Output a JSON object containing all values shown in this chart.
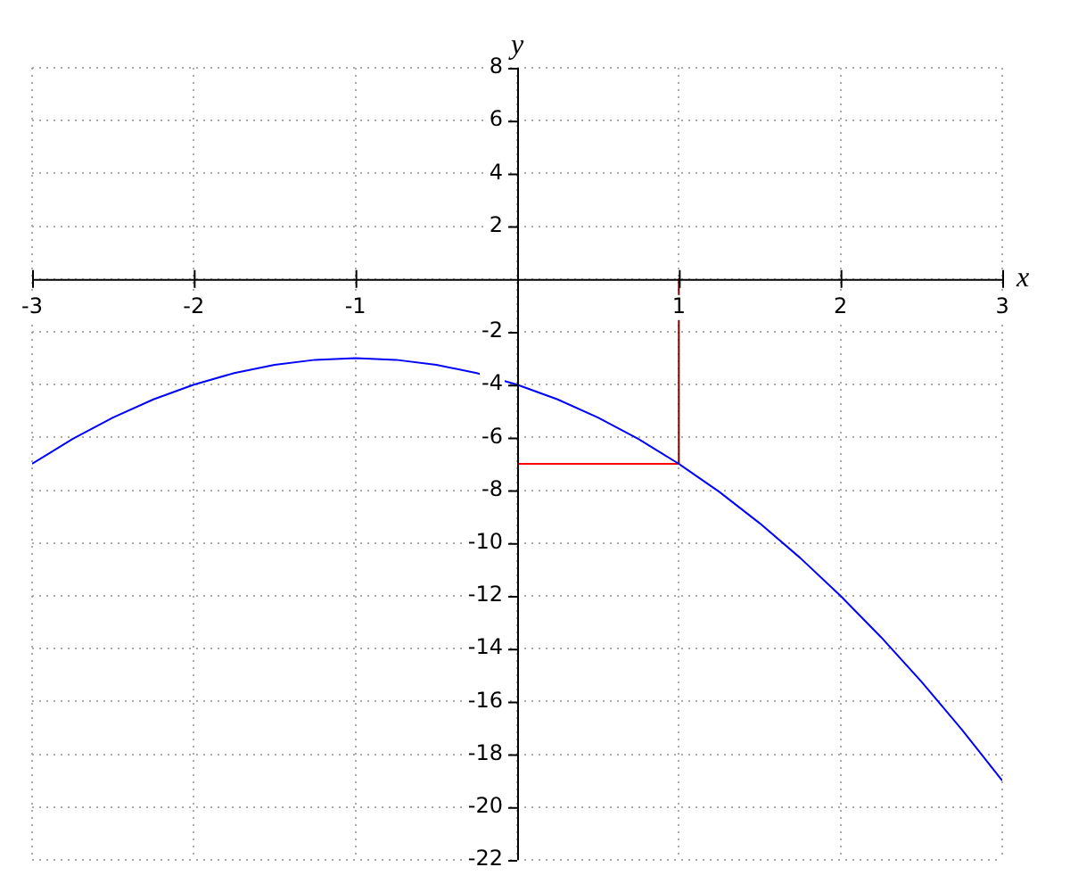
{
  "chart_data": {
    "type": "line",
    "xlabel": "x",
    "ylabel": "y",
    "xlim": [
      -3,
      3
    ],
    "ylim": [
      -22,
      8
    ],
    "xticks": [
      -3,
      -2,
      -1,
      {
        "value": 0,
        "label": null
      },
      1,
      2,
      3
    ],
    "yticks": [
      -22,
      -20,
      -18,
      -16,
      -14,
      -12,
      -10,
      -8,
      -6,
      -4,
      -2,
      {
        "value": 0,
        "label": null
      },
      2,
      4,
      6,
      8
    ],
    "grid": true,
    "legend": false,
    "marker": "none",
    "line_style": "solid",
    "series": [
      {
        "color": "#0000ff",
        "x": [
          -3,
          -2.75,
          -2.5,
          -2.25,
          -2,
          -1.75,
          -1.5,
          -1.25,
          -1,
          -0.75,
          -0.5,
          -0.25,
          0,
          0.25,
          0.5,
          0.75,
          1,
          1.25,
          1.5,
          1.75,
          2,
          2.25,
          2.5,
          2.75,
          3
        ],
        "values": [
          -7,
          -6.06,
          -5.25,
          -4.56,
          -4,
          -3.56,
          -3.25,
          -3.06,
          -3,
          -3.06,
          -3.25,
          -3.56,
          -4,
          -4.56,
          -5.25,
          -6.06,
          -7,
          -8.06,
          -9.25,
          -10.56,
          -12,
          -13.56,
          -15.25,
          -17.06,
          -19
        ]
      },
      {
        "color": "#ff0000",
        "x": [
          0,
          1
        ],
        "values": [
          -7,
          -7
        ]
      },
      {
        "color": "#800000",
        "x": [
          1,
          1
        ],
        "values": [
          0,
          -7
        ]
      }
    ]
  }
}
